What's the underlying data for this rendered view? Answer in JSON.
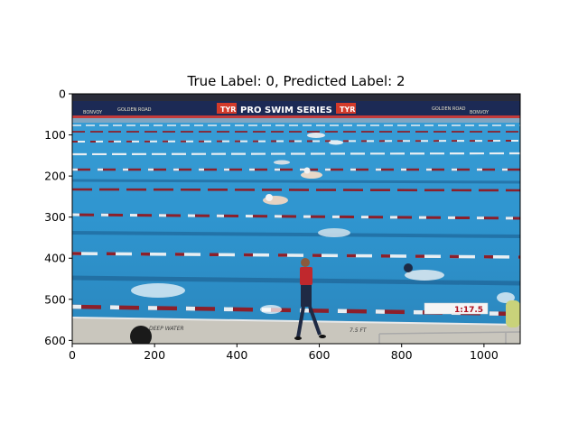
{
  "figure": {
    "title": "True Label: 0, Predicted Label: 2",
    "image_content": "swimming-pool-race-frame",
    "x_axis": {
      "ticks": [
        "0",
        "200",
        "400",
        "600",
        "800",
        "1000"
      ],
      "tick_values": [
        0,
        200,
        400,
        600,
        800,
        1000
      ],
      "range": [
        0,
        1088
      ]
    },
    "y_axis": {
      "ticks": [
        "0",
        "100",
        "200",
        "300",
        "400",
        "500",
        "600"
      ],
      "tick_values": [
        0,
        100,
        200,
        300,
        400,
        500,
        600
      ],
      "range": [
        0,
        608
      ]
    },
    "image_text": {
      "banner": "PRO SWIM SERIES",
      "brand_left": "TYR",
      "brand_right": "TYR",
      "sponsor_1": "GOLDEN ROAD",
      "sponsor_2": "GOLDEN ROAD",
      "sponsor_3": "BONVOY",
      "sponsor_4": "BONVOY",
      "race_clock": "1:17.5",
      "deck_marking_left": "DEEP WATER",
      "deck_marking_right": "7.5 FT"
    },
    "colors": {
      "pool_water": "#2f95cf",
      "lane_rope_red": "#8c1f2a",
      "lane_rope_white": "#e8eef2",
      "banner_navy": "#1c2a55",
      "deck": "#c9c6bd",
      "clock_text": "#b01020"
    }
  }
}
